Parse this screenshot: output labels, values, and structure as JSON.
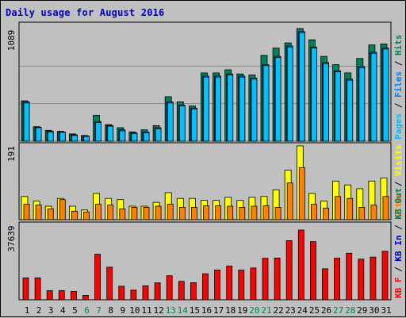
{
  "title": "Daily usage for August 2016",
  "colors": {
    "hits": "#00805c",
    "files": "#0080ff",
    "pages": "#00c0ff",
    "visits": "#ffff00",
    "sites": "#ff8000",
    "kbin": "#ff0000",
    "kbout": "#00805c",
    "weekend_day": "#00805c",
    "weekday": "#000080",
    "panel_bg": "#c0c0c0"
  },
  "chart_data": [
    {
      "type": "bar",
      "panel": "top",
      "ymax_label": "1089",
      "legend": {
        "pages": "Pages",
        "files": "Files",
        "hits": "Hits",
        "sep": "/"
      },
      "series": [
        {
          "name": "Hits",
          "values": [
            390,
            140,
            105,
            95,
            70,
            55,
            250,
            160,
            130,
            90,
            110,
            150,
            430,
            380,
            340,
            660,
            660,
            690,
            650,
            640,
            830,
            900,
            950,
            1089,
            980,
            820,
            740,
            660,
            800,
            930,
            940
          ]
        },
        {
          "name": "Files",
          "values": [
            380,
            135,
            95,
            88,
            62,
            50,
            190,
            150,
            110,
            80,
            90,
            130,
            380,
            350,
            320,
            630,
            630,
            650,
            630,
            610,
            740,
            820,
            920,
            1060,
            910,
            760,
            680,
            600,
            720,
            860,
            900
          ]
        },
        {
          "name": "Pages",
          "values": [
            370,
            130,
            90,
            85,
            55,
            45,
            180,
            145,
            100,
            75,
            80,
            120,
            370,
            340,
            310,
            620,
            620,
            640,
            620,
            600,
            730,
            810,
            910,
            1050,
            900,
            750,
            670,
            590,
            710,
            850,
            890
          ]
        }
      ]
    },
    {
      "type": "bar",
      "panel": "middle",
      "ymax_label": "191",
      "legend": {
        "visits": "Visits",
        "sites": "Sites",
        "sep": "/"
      },
      "series": [
        {
          "name": "Visits",
          "values": [
            60,
            48,
            35,
            55,
            35,
            25,
            68,
            55,
            52,
            35,
            35,
            45,
            70,
            55,
            55,
            50,
            50,
            58,
            50,
            58,
            60,
            77,
            128,
            191,
            68,
            48,
            100,
            90,
            80,
            100,
            108
          ]
        },
        {
          "name": "Sites",
          "values": [
            40,
            38,
            28,
            52,
            22,
            20,
            40,
            38,
            28,
            32,
            32,
            35,
            40,
            32,
            32,
            36,
            36,
            35,
            32,
            35,
            36,
            32,
            95,
            135,
            40,
            30,
            60,
            55,
            32,
            38,
            60
          ]
        }
      ]
    },
    {
      "type": "bar",
      "panel": "bottom",
      "ymax_label": "37639",
      "legend": {
        "kbf": "KB F",
        "kbin": "KB In",
        "kbout": "KB Out",
        "sep": "/"
      },
      "series": [
        {
          "name": "KB In",
          "values": [
            11300,
            11300,
            4700,
            4700,
            4300,
            2300,
            23500,
            16800,
            7000,
            5000,
            7200,
            8700,
            12400,
            9500,
            8800,
            13400,
            15400,
            17400,
            15300,
            16400,
            21400,
            21500,
            30500,
            36000,
            30000,
            16000,
            21500,
            24000,
            21000,
            22000,
            25000
          ]
        }
      ]
    }
  ],
  "x_labels": [
    "1",
    "2",
    "3",
    "4",
    "5",
    "6",
    "7",
    "8",
    "9",
    "10",
    "11",
    "12",
    "13",
    "14",
    "15",
    "16",
    "17",
    "18",
    "19",
    "20",
    "21",
    "22",
    "23",
    "24",
    "25",
    "26",
    "27",
    "28",
    "29",
    "30",
    "31"
  ],
  "weekend_days": [
    6,
    7,
    13,
    14,
    20,
    21,
    27,
    28
  ]
}
